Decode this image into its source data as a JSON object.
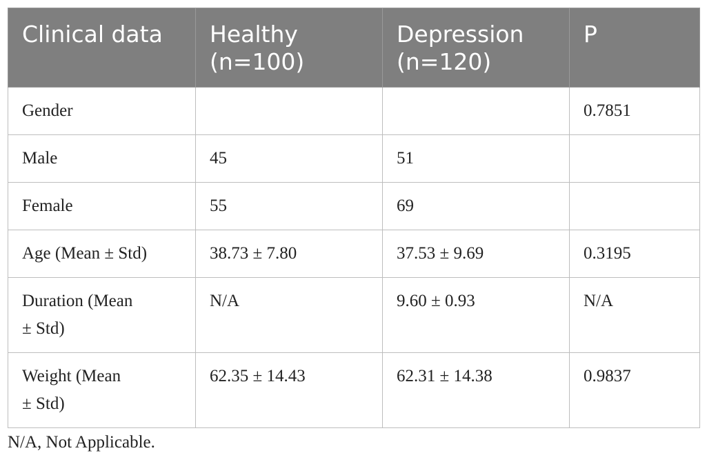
{
  "table": {
    "headers": [
      "Clinical data",
      "Healthy\n(n=100)",
      "Depression\n(n=120)",
      "P"
    ],
    "header_lines": [
      [
        "Clinical data"
      ],
      [
        "Healthy",
        "(n=100)"
      ],
      [
        "Depression",
        "(n=120)"
      ],
      [
        "P"
      ]
    ],
    "rows": [
      {
        "label": "Gender",
        "healthy": "",
        "depression": "",
        "p": "0.7851"
      },
      {
        "label": "Male",
        "healthy": "45",
        "depression": "51",
        "p": ""
      },
      {
        "label": "Female",
        "healthy": "55",
        "depression": "69",
        "p": ""
      },
      {
        "label": "Age (Mean ± Std)",
        "healthy": "38.73 ± 7.80",
        "depression": "37.53 ± 9.69",
        "p": "0.3195"
      },
      {
        "label_lines": [
          "Duration (Mean",
          "± Std)"
        ],
        "label": "Duration (Mean ± Std)",
        "healthy": "N/A",
        "depression": "9.60 ± 0.93",
        "p": "N/A"
      },
      {
        "label_lines": [
          "Weight (Mean",
          "± Std)"
        ],
        "label": "Weight (Mean ± Std)",
        "healthy": "62.35 ± 14.43",
        "depression": "62.31 ± 14.38",
        "p": "0.9837"
      }
    ]
  },
  "footnote": "N/A, Not Applicable.",
  "colors": {
    "header_bg": "#7f7f7f",
    "header_text": "#ffffff",
    "border": "#bdbdbd"
  }
}
